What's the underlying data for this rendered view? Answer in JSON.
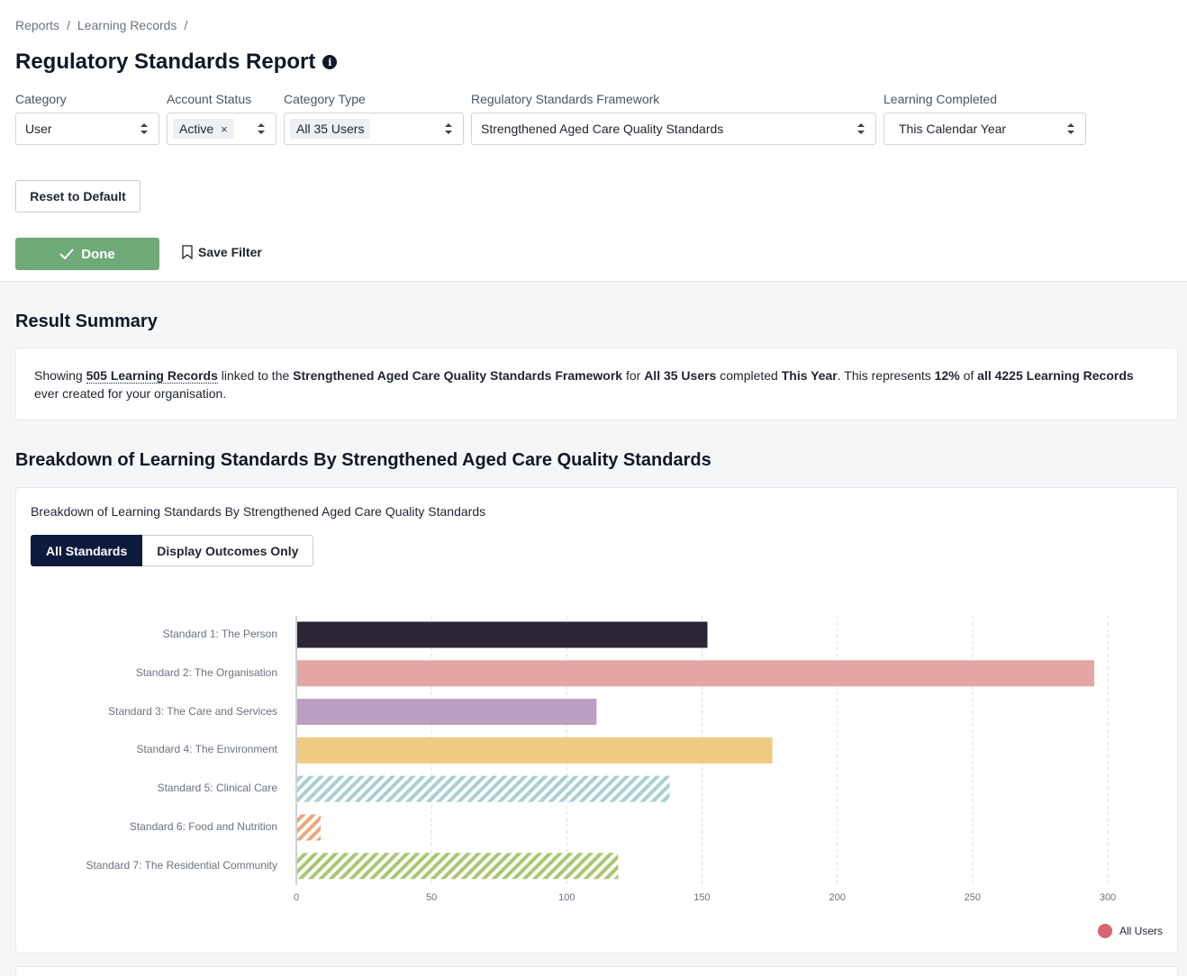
{
  "breadcrumb": [
    "Reports",
    "Learning Records"
  ],
  "page_title": "Regulatory Standards Report",
  "filters": {
    "category": {
      "label": "Category",
      "value": "User"
    },
    "account_status": {
      "label": "Account Status",
      "chip": "Active",
      "remove": "×"
    },
    "category_type": {
      "label": "Category Type",
      "chip": "All 35 Users"
    },
    "framework": {
      "label": "Regulatory Standards Framework",
      "value": "Strengthened Aged Care Quality Standards"
    },
    "learning_completed": {
      "label": "Learning Completed",
      "value": "This Calendar Year"
    }
  },
  "buttons": {
    "reset": "Reset to Default",
    "done": "Done",
    "save_filter": "Save Filter"
  },
  "summary": {
    "title": "Result Summary",
    "parts": {
      "p1": "Showing ",
      "records": "505 Learning Records",
      "p2": " linked to the ",
      "framework": "Strengthened Aged Care Quality Standards Framework",
      "p3": " for ",
      "users": "All 35 Users",
      "p4": " completed ",
      "period": "This Year",
      "p5": ". This represents ",
      "percent": "12%",
      "p6": " of ",
      "total": "all 4225 Learning Records",
      "p7": " ever created for your organisation."
    }
  },
  "breakdown": {
    "title": "Breakdown of Learning Standards By Strengthened Aged Care Quality Standards",
    "chart_heading": "Breakdown of Learning Standards By Strengthened Aged Care Quality Standards",
    "toggle": {
      "all": "All Standards",
      "outcomes": "Display Outcomes Only"
    }
  },
  "chart_data": {
    "type": "bar",
    "orientation": "horizontal",
    "categories": [
      "Standard 1: The Person",
      "Standard 2: The Organisation",
      "Standard 3: The Care and Services",
      "Standard 4: The Environment",
      "Standard 5: Clinical Care",
      "Standard 6: Food and Nutrition",
      "Standard 7: The Residential Community"
    ],
    "values": [
      152,
      295,
      111,
      176,
      138,
      9,
      119
    ],
    "colors": [
      "#2d2535",
      "#e3a6a3",
      "#bb9ec1",
      "#f0ca80",
      "#a9cfd0",
      "#eea57c",
      "#a9c770"
    ],
    "patterns": [
      "solid",
      "solid",
      "solid",
      "solid",
      "hatched",
      "hatched",
      "hatched"
    ],
    "xlim": [
      0,
      300
    ],
    "xticks": [
      0,
      50,
      100,
      150,
      200,
      250,
      300
    ],
    "grid": true,
    "legend": {
      "label": "All Users",
      "color": "#d9636e",
      "placement": "bottom-right"
    }
  }
}
